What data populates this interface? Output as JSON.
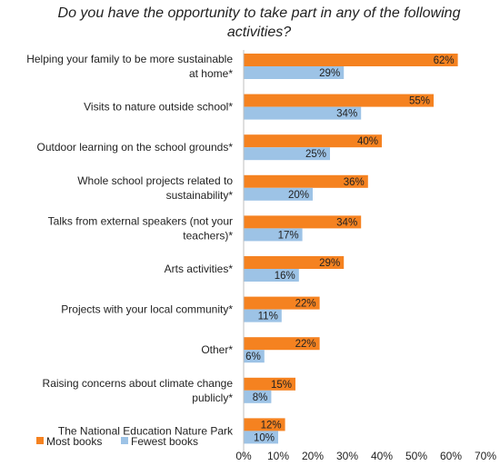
{
  "chart_data": {
    "type": "bar",
    "orientation": "horizontal",
    "title": "Do you have the opportunity to take part in any of the following activities?",
    "categories": [
      [
        "Helping your family to be more sustainable",
        "at home*"
      ],
      [
        "Visits to nature outside school*"
      ],
      [
        "Outdoor learning on the school grounds*"
      ],
      [
        "Whole school projects related to",
        "sustainability*"
      ],
      [
        "Talks from external speakers (not your",
        "teachers)*"
      ],
      [
        "Arts activities*"
      ],
      [
        "Projects with your local community*"
      ],
      [
        "Other*"
      ],
      [
        "Raising concerns about climate change",
        "publicly*"
      ],
      [
        "The National Education Nature Park"
      ]
    ],
    "series": [
      {
        "name": "Most books",
        "color": "#F58220",
        "values": [
          62,
          55,
          40,
          36,
          34,
          29,
          22,
          22,
          15,
          12
        ],
        "labels": [
          "62%",
          "55%",
          "40%",
          "36%",
          "34%",
          "29%",
          "22%",
          "22%",
          "15%",
          "12%"
        ]
      },
      {
        "name": "Fewest books",
        "color": "#9DC3E6",
        "values": [
          29,
          34,
          25,
          20,
          17,
          16,
          11,
          6,
          8,
          10
        ],
        "labels": [
          "29%",
          "34%",
          "25%",
          "20%",
          "17%",
          "16%",
          "11%",
          "6%",
          "8%",
          "10%"
        ]
      }
    ],
    "xlim": [
      0,
      70
    ],
    "xticks": [
      0,
      10,
      20,
      30,
      40,
      50,
      60,
      70
    ],
    "xtick_labels": [
      "0%",
      "10%",
      "20%",
      "30%",
      "40%",
      "50%",
      "60%",
      "70%"
    ],
    "grid": false,
    "legend": "bottom-left"
  }
}
